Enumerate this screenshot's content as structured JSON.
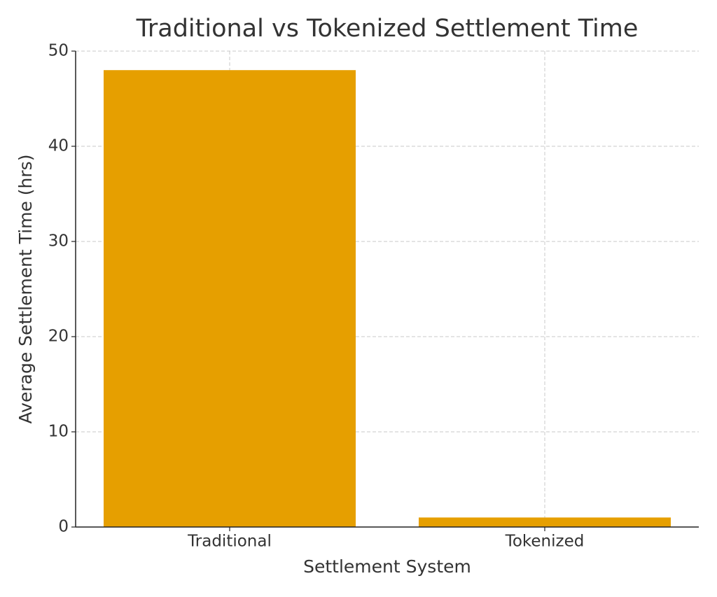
{
  "chart_data": {
    "type": "bar",
    "title": "Traditional vs Tokenized Settlement Time",
    "x_label": "Settlement System",
    "y_label": "Average Settlement Time (hrs)",
    "categories": [
      "Traditional",
      "Tokenized"
    ],
    "values": [
      48,
      1
    ],
    "color": "#e69f00",
    "ylim": [
      0,
      50
    ],
    "yticks": [
      0,
      10,
      20,
      30,
      40,
      50
    ],
    "grid": true
  }
}
